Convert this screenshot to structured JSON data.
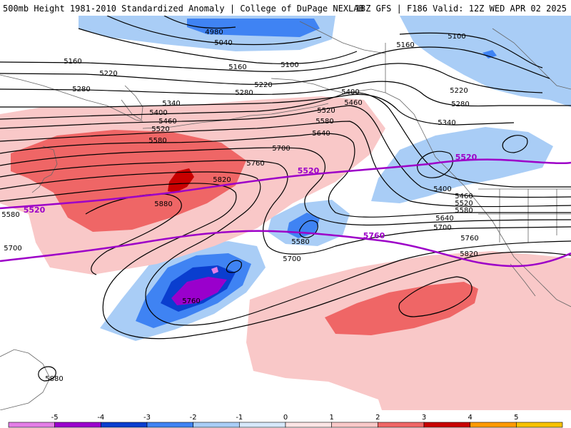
{
  "header": {
    "title_left": "500mb Height 1981-2010 Standardized Anomaly | College of DuPage NEXLAB",
    "title_right": "18Z GFS | F186 Valid: 12Z WED APR 02 2025"
  },
  "colors": {
    "neg5": "#e37ee6",
    "neg4": "#9a00cc",
    "neg3": "#0a3ecf",
    "neg2": "#3f83f3",
    "neg1": "#a9cdf6",
    "neg05": "#d7e8fb",
    "pos05": "#fde5e5",
    "pos1": "#f9c8c8",
    "pos2": "#ef6666",
    "pos3": "#c80000",
    "pos4": "#fe9a00",
    "pos5": "#f7c200",
    "contour": "#000000",
    "reference_contour": "#9d00c8",
    "coast": "#666666"
  },
  "contour_labels": [
    {
      "text": "4980",
      "name": "contour-label-4980"
    },
    {
      "text": "5040",
      "name": "contour-label-5040-north"
    },
    {
      "text": "5100",
      "name": "contour-label-5100-north"
    },
    {
      "text": "5100",
      "name": "contour-label-5100-east"
    },
    {
      "text": "5160",
      "name": "contour-label-5160-west"
    },
    {
      "text": "5160",
      "name": "contour-label-5160-center"
    },
    {
      "text": "5160",
      "name": "contour-label-5160-east"
    },
    {
      "text": "5220",
      "name": "contour-label-5220-west"
    },
    {
      "text": "5220",
      "name": "contour-label-5220-center"
    },
    {
      "text": "5220",
      "name": "contour-label-5220-east"
    },
    {
      "text": "5280",
      "name": "contour-label-5280-west"
    },
    {
      "text": "5280",
      "name": "contour-label-5280-center"
    },
    {
      "text": "5280",
      "name": "contour-label-5280-east"
    },
    {
      "text": "5340",
      "name": "contour-label-5340-west"
    },
    {
      "text": "5340",
      "name": "contour-label-5340-east"
    },
    {
      "text": "5400",
      "name": "contour-label-5400-west"
    },
    {
      "text": "5400",
      "name": "contour-label-5400-center"
    },
    {
      "text": "5400",
      "name": "contour-label-5400-east"
    },
    {
      "text": "5460",
      "name": "contour-label-5460-west"
    },
    {
      "text": "5460",
      "name": "contour-label-5460-center"
    },
    {
      "text": "5460",
      "name": "contour-label-5460-east"
    },
    {
      "text": "5520",
      "name": "contour-label-5520-west"
    },
    {
      "text": "5520",
      "name": "contour-label-5520-center"
    },
    {
      "text": "5520",
      "name": "contour-label-5520-east"
    },
    {
      "text": "5580",
      "name": "contour-label-5580-west"
    },
    {
      "text": "5580",
      "name": "contour-label-5580-center"
    },
    {
      "text": "5580",
      "name": "contour-label-5580-low"
    },
    {
      "text": "5580",
      "name": "contour-label-5580-east"
    },
    {
      "text": "5580",
      "name": "contour-label-5580-far-west"
    },
    {
      "text": "5640",
      "name": "contour-label-5640-center"
    },
    {
      "text": "5640",
      "name": "contour-label-5640-east"
    },
    {
      "text": "5700",
      "name": "contour-label-5700-center"
    },
    {
      "text": "5700",
      "name": "contour-label-5700-low"
    },
    {
      "text": "5700",
      "name": "contour-label-5700-east"
    },
    {
      "text": "5700",
      "name": "contour-label-5700-west"
    },
    {
      "text": "5760",
      "name": "contour-label-5760-center"
    },
    {
      "text": "5760",
      "name": "contour-label-5760-low"
    },
    {
      "text": "5760",
      "name": "contour-label-5760-east"
    },
    {
      "text": "5820",
      "name": "contour-label-5820-center"
    },
    {
      "text": "5820",
      "name": "contour-label-5820-east"
    },
    {
      "text": "5880",
      "name": "contour-label-5880-center"
    },
    {
      "text": "5880",
      "name": "contour-label-5880-south"
    }
  ],
  "reference_labels": [
    {
      "text": "5520",
      "name": "ref-label-5520-west"
    },
    {
      "text": "5520",
      "name": "ref-label-5520-center"
    },
    {
      "text": "5520",
      "name": "ref-label-5520-east"
    },
    {
      "text": "5760",
      "name": "ref-label-5760"
    }
  ],
  "colorbar": {
    "ticks": [
      "-5",
      "-4",
      "-3",
      "-2",
      "-1",
      "0",
      "1",
      "2",
      "3",
      "4",
      "5"
    ]
  }
}
